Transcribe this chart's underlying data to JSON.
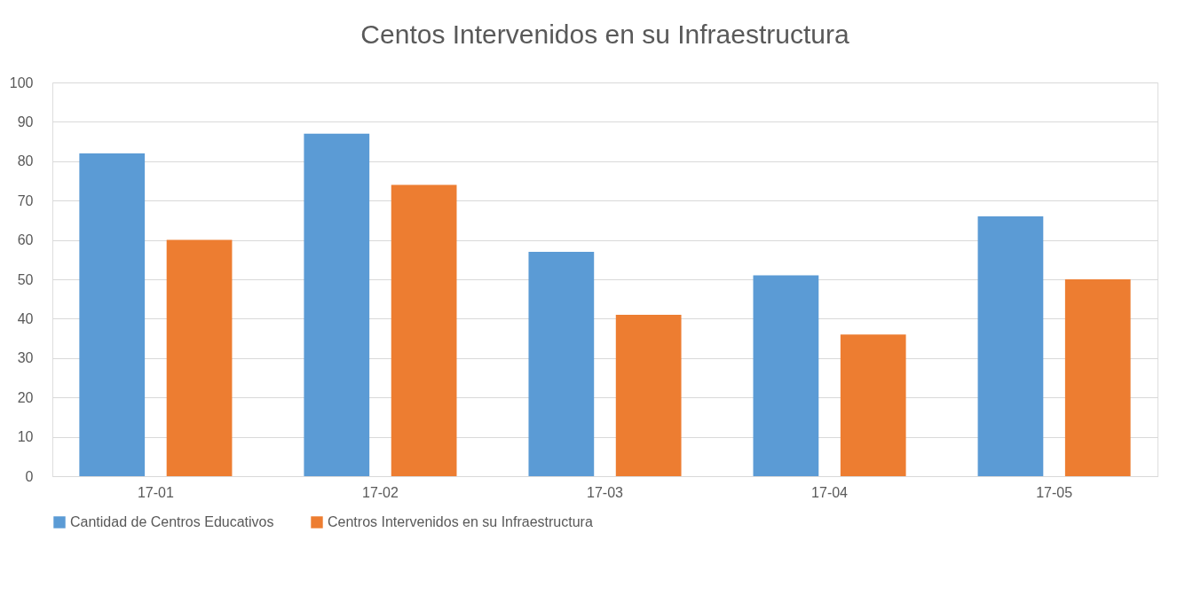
{
  "chart_data": {
    "type": "bar",
    "title": "Centos Intervenidos en su Infraestructura",
    "categories": [
      "17-01",
      "17-02",
      "17-03",
      "17-04",
      "17-05"
    ],
    "series": [
      {
        "name": "Cantidad de Centros Educativos",
        "color": "#5b9bd5",
        "values": [
          82,
          87,
          57,
          51,
          66
        ]
      },
      {
        "name": "Centros Intervenidos en su Infraestructura",
        "color": "#ed7d31",
        "values": [
          60,
          74,
          41,
          36,
          50
        ]
      }
    ],
    "ylim": [
      0,
      100
    ],
    "yticks": [
      0,
      10,
      20,
      30,
      40,
      50,
      60,
      70,
      80,
      90,
      100
    ],
    "grid": "y",
    "legend": "bottom"
  }
}
